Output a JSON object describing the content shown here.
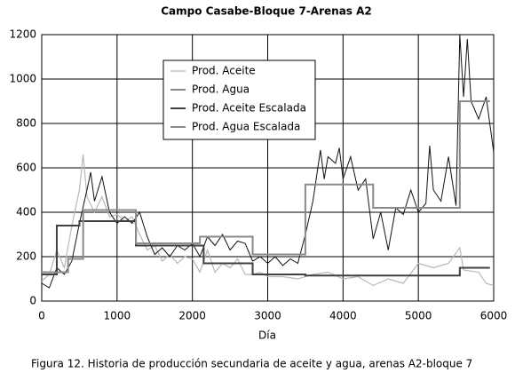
{
  "chart_data": {
    "type": "line",
    "title": "Campo Casabe-Bloque 7-Arenas A2",
    "xlabel": "Día",
    "caption": "Figura 12. Historia de producción secundaria de aceite y agua, arenas A2-bloque 7",
    "xlim": [
      0,
      6000
    ],
    "xticks": [
      0,
      1000,
      2000,
      3000,
      4000,
      5000,
      6000
    ],
    "ylim": [
      0,
      1200
    ],
    "yticks": [
      0,
      200,
      400,
      600,
      800,
      1000,
      1200
    ],
    "grid": true,
    "series": [
      {
        "name": "Prod. Aceite",
        "color": "#b8b8b8",
        "width": 1.2,
        "x": [
          0,
          100,
          200,
          300,
          400,
          500,
          550,
          600,
          700,
          800,
          900,
          1000,
          1100,
          1200,
          1300,
          1400,
          1500,
          1600,
          1700,
          1800,
          1900,
          2000,
          2100,
          2200,
          2300,
          2400,
          2500,
          2600,
          2700,
          2800,
          2900,
          3000,
          3200,
          3400,
          3600,
          3800,
          4000,
          4200,
          4400,
          4600,
          4800,
          5000,
          5200,
          5400,
          5550,
          5600,
          5800,
          5900,
          6000
        ],
        "values": [
          90,
          120,
          230,
          150,
          340,
          500,
          660,
          470,
          400,
          470,
          380,
          390,
          360,
          380,
          300,
          230,
          250,
          180,
          210,
          170,
          200,
          190,
          130,
          230,
          130,
          170,
          150,
          190,
          120,
          120,
          130,
          110,
          110,
          100,
          120,
          130,
          100,
          110,
          70,
          100,
          80,
          170,
          150,
          170,
          240,
          140,
          130,
          80,
          70
        ]
      },
      {
        "name": "Prod. Agua",
        "color": "#111111",
        "width": 1,
        "x": [
          0,
          100,
          200,
          300,
          400,
          500,
          600,
          650,
          700,
          800,
          900,
          1000,
          1100,
          1200,
          1300,
          1400,
          1500,
          1600,
          1700,
          1800,
          1900,
          2000,
          2100,
          2200,
          2300,
          2400,
          2500,
          2600,
          2700,
          2800,
          2900,
          3000,
          3100,
          3200,
          3300,
          3400,
          3500,
          3600,
          3700,
          3750,
          3800,
          3900,
          3950,
          4000,
          4100,
          4200,
          4300,
          4400,
          4500,
          4600,
          4700,
          4800,
          4900,
          5000,
          5100,
          5150,
          5200,
          5300,
          5400,
          5500,
          5550,
          5600,
          5650,
          5700,
          5800,
          5900,
          6000
        ],
        "values": [
          80,
          60,
          150,
          120,
          180,
          350,
          500,
          580,
          450,
          560,
          400,
          350,
          380,
          350,
          400,
          290,
          210,
          240,
          200,
          250,
          230,
          260,
          200,
          290,
          250,
          300,
          230,
          270,
          260,
          180,
          200,
          170,
          200,
          160,
          190,
          170,
          300,
          450,
          680,
          550,
          650,
          620,
          690,
          550,
          650,
          500,
          550,
          280,
          400,
          230,
          420,
          390,
          500,
          400,
          440,
          700,
          500,
          450,
          650,
          430,
          1200,
          920,
          1180,
          900,
          820,
          920,
          670
        ]
      },
      {
        "name": "Prod. Aceite Escalada",
        "color": "#404040",
        "width": 2,
        "x": [
          0,
          200,
          200,
          500,
          500,
          1250,
          1250,
          2150,
          2150,
          2800,
          2800,
          3500,
          3500,
          5550,
          5550,
          5950
        ],
        "values": [
          120,
          120,
          340,
          340,
          360,
          360,
          250,
          250,
          170,
          170,
          120,
          120,
          115,
          115,
          150,
          150
        ]
      },
      {
        "name": "Prod. Agua Escalada",
        "color": "#8a8a8a",
        "width": 2,
        "x": [
          0,
          350,
          350,
          550,
          550,
          1250,
          1250,
          2100,
          2100,
          2800,
          2800,
          3500,
          3500,
          4400,
          4400,
          5550,
          5550,
          5950
        ],
        "values": [
          130,
          130,
          190,
          190,
          410,
          410,
          260,
          260,
          290,
          290,
          210,
          210,
          525,
          525,
          420,
          420,
          900,
          900
        ]
      }
    ]
  }
}
